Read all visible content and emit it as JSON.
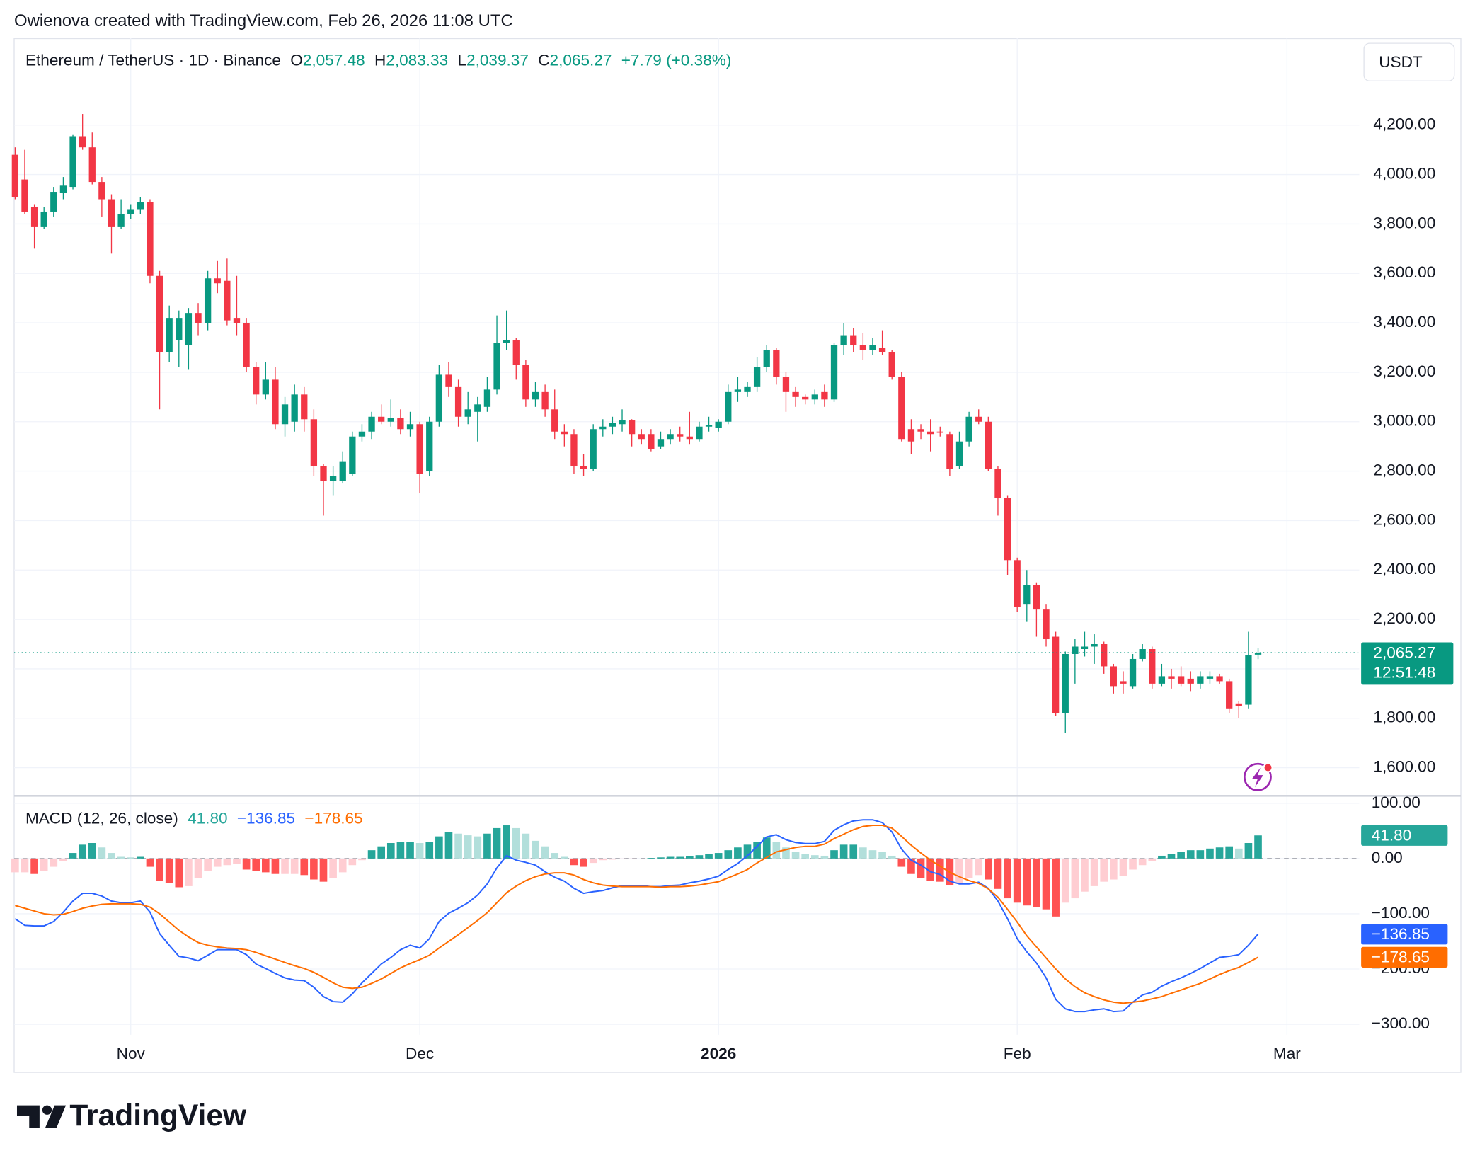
{
  "header": {
    "attribution": "Owienova created with TradingView.com, Feb 26, 2026 11:08 UTC"
  },
  "branding": {
    "logo_text": "TradingView"
  },
  "chart_data": [
    {
      "type": "candlestick",
      "title": "Ethereum / TetherUS · 1D · Binance",
      "legend_items": [
        {
          "key": "O",
          "value": "2,057.48"
        },
        {
          "key": "H",
          "value": "2,083.33"
        },
        {
          "key": "L",
          "value": "2,039.37"
        },
        {
          "key": "C",
          "value": "2,065.27"
        }
      ],
      "change": "+7.79 (+0.38%)",
      "currency": "USDT",
      "price_label": "2,065.27",
      "countdown": "12:51:48",
      "up_color": "#089981",
      "down_color": "#f23645",
      "grid": true,
      "xlim": [
        -0.1,
        139.5
      ],
      "ylim": [
        1490,
        4554
      ],
      "yticks": [
        {
          "value": 1600,
          "label": "1,600.00"
        },
        {
          "value": 1800,
          "label": "1,800.00"
        },
        {
          "value": 2000,
          "label": "2,000.00"
        },
        {
          "value": 2200,
          "label": "2,200.00"
        },
        {
          "value": 2400,
          "label": "2,400.00"
        },
        {
          "value": 2600,
          "label": "2,600.00"
        },
        {
          "value": 2800,
          "label": "2,800.00"
        },
        {
          "value": 3000,
          "label": "3,000.00"
        },
        {
          "value": 3200,
          "label": "3,200.00"
        },
        {
          "value": 3400,
          "label": "3,400.00"
        },
        {
          "value": 3600,
          "label": "3,600.00"
        },
        {
          "value": 3800,
          "label": "3,800.00"
        },
        {
          "value": 4000,
          "label": "4,000.00"
        },
        {
          "value": 4200,
          "label": "4,200.00"
        }
      ],
      "open": [
        4080,
        3980,
        3870,
        3790,
        3850,
        3925,
        3950,
        4155,
        4110,
        3970,
        3900,
        3790,
        3840,
        3860,
        3890,
        3590,
        3280,
        3330,
        3310,
        3440,
        3400,
        3580,
        3570,
        3420,
        3400,
        3220,
        3110,
        3170,
        2990,
        3000,
        3110,
        3010,
        2820,
        2760,
        2760,
        2790,
        2940,
        2960,
        3020,
        3000,
        3015,
        2970,
        2990,
        2800,
        3000,
        3190,
        3140,
        3020,
        3040,
        3060,
        3130,
        3320,
        3330,
        3230,
        3090,
        3120,
        3050,
        2960,
        2950,
        2820,
        2810,
        2970,
        2980,
        2990,
        3005,
        2950,
        2950,
        2900,
        2930,
        2950,
        2940,
        2930,
        2980,
        2975,
        3000,
        3120,
        3120,
        3140,
        3220,
        3290,
        3180,
        3120,
        3100,
        3090,
        3120,
        3090,
        3310,
        3350,
        3310,
        3290,
        3300,
        3280,
        3180,
        2970,
        2970,
        2960,
        2960,
        2950,
        2820,
        2920,
        3020,
        3000,
        2810,
        2690,
        2440,
        2260,
        2340,
        2240,
        2130,
        1820,
        2060,
        2080,
        2090,
        2100,
        2010,
        1950,
        1930,
        2040,
        2080,
        1940,
        1970,
        1970,
        1960,
        1940,
        1960,
        1970,
        1950,
        1860,
        1855,
        2057.48
      ],
      "high": [
        4110,
        4100,
        3880,
        3870,
        3950,
        3990,
        4160,
        4245,
        4170,
        3990,
        3920,
        3900,
        3880,
        3910,
        3900,
        3610,
        3470,
        3450,
        3460,
        3480,
        3610,
        3650,
        3660,
        3590,
        3420,
        3240,
        3240,
        3220,
        3100,
        3150,
        3140,
        3050,
        2830,
        2820,
        2880,
        2960,
        2990,
        3040,
        3070,
        3090,
        3050,
        3040,
        3000,
        3020,
        3230,
        3240,
        3170,
        3120,
        3100,
        3180,
        3430,
        3450,
        3340,
        3250,
        3160,
        3150,
        3130,
        2990,
        2970,
        2870,
        2990,
        3010,
        3020,
        3050,
        3010,
        2970,
        2970,
        2960,
        2970,
        2980,
        3040,
        3000,
        3020,
        3010,
        3150,
        3180,
        3160,
        3260,
        3310,
        3300,
        3200,
        3140,
        3110,
        3130,
        3150,
        3320,
        3400,
        3380,
        3360,
        3340,
        3370,
        3290,
        3200,
        3010,
        2990,
        3010,
        2980,
        2960,
        2960,
        3040,
        3050,
        3020,
        2820,
        2700,
        2450,
        2400,
        2350,
        2260,
        2150,
        2070,
        2120,
        2150,
        2140,
        2110,
        2020,
        1990,
        2060,
        2100,
        2090,
        2020,
        2000,
        2010,
        1990,
        1990,
        1990,
        1980,
        1960,
        1870,
        2150,
        2083.33
      ],
      "low": [
        3900,
        3840,
        3700,
        3780,
        3830,
        3900,
        3940,
        4100,
        3960,
        3830,
        3680,
        3780,
        3820,
        3840,
        3560,
        3050,
        3240,
        3220,
        3210,
        3350,
        3370,
        3520,
        3390,
        3350,
        3200,
        3070,
        3090,
        2970,
        2940,
        2960,
        2960,
        2780,
        2620,
        2700,
        2750,
        2780,
        2920,
        2930,
        2990,
        2980,
        2950,
        2940,
        2710,
        2780,
        2980,
        3100,
        2980,
        2990,
        2920,
        3040,
        3110,
        3290,
        3170,
        3060,
        3060,
        3020,
        2930,
        2900,
        2790,
        2780,
        2800,
        2940,
        2950,
        2960,
        2900,
        2910,
        2880,
        2890,
        2910,
        2920,
        2910,
        2920,
        2960,
        2960,
        2990,
        3080,
        3100,
        3120,
        3200,
        3150,
        3040,
        3060,
        3070,
        3070,
        3060,
        3080,
        3270,
        3280,
        3250,
        3270,
        3270,
        3170,
        2920,
        2870,
        2930,
        2880,
        2940,
        2780,
        2810,
        2900,
        2990,
        2800,
        2620,
        2380,
        2230,
        2190,
        2130,
        2090,
        1810,
        1740,
        1940,
        2050,
        2020,
        1980,
        1900,
        1900,
        1920,
        2030,
        1920,
        1930,
        1920,
        1930,
        1910,
        1920,
        1940,
        1940,
        1820,
        1800,
        1840,
        2039.37
      ],
      "close": [
        3910,
        3850,
        3790,
        3850,
        3930,
        3955,
        4155,
        4110,
        3970,
        3900,
        3790,
        3840,
        3860,
        3890,
        3590,
        3280,
        3420,
        3420,
        3440,
        3400,
        3580,
        3560,
        3410,
        3400,
        3220,
        3110,
        3170,
        2990,
        3070,
        3110,
        3010,
        2820,
        2760,
        2780,
        2840,
        2940,
        2960,
        3020,
        3000,
        3015,
        2970,
        2990,
        2790,
        3000,
        3190,
        3140,
        3020,
        3050,
        3070,
        3130,
        3320,
        3330,
        3230,
        3090,
        3120,
        3050,
        2960,
        2950,
        2820,
        2810,
        2970,
        2980,
        2995,
        3005,
        2950,
        2930,
        2890,
        2930,
        2950,
        2940,
        2930,
        2980,
        2985,
        3000,
        3120,
        3130,
        3140,
        3220,
        3290,
        3180,
        3120,
        3100,
        3090,
        3110,
        3090,
        3310,
        3350,
        3310,
        3290,
        3310,
        3280,
        3180,
        2930,
        2920,
        2960,
        2950,
        2955,
        2810,
        2920,
        3020,
        3000,
        2810,
        2690,
        2440,
        2250,
        2340,
        2240,
        2120,
        1820,
        2060,
        2090,
        2090,
        2100,
        2010,
        1930,
        1940,
        2040,
        2080,
        1940,
        1970,
        1960,
        1940,
        1940,
        1970,
        1970,
        1950,
        1840,
        1850,
        2057,
        2065.27
      ]
    },
    {
      "type": "macd",
      "title": "MACD (12, 26, close)",
      "grid": true,
      "xlim": [
        -0.1,
        139.5
      ],
      "ylim": [
        -319,
        110
      ],
      "xticks": [
        {
          "value": 12,
          "label": "Nov"
        },
        {
          "value": 42,
          "label": "Dec"
        },
        {
          "value": 73,
          "label": "2026",
          "emphasis": true
        },
        {
          "value": 104,
          "label": "Feb"
        },
        {
          "value": 132,
          "label": "Mar"
        }
      ],
      "yticks": [
        {
          "value": -300,
          "label": "−300.00"
        },
        {
          "value": -200,
          "label": "−200.00"
        },
        {
          "value": -100,
          "label": "−100.00"
        },
        {
          "value": 0,
          "label": "0.00"
        },
        {
          "value": 100,
          "label": "100.00"
        }
      ],
      "series": [
        {
          "kind": "histogram",
          "color": "#26a69a",
          "colors": {
            "positive_rising": "#26a69a",
            "positive_falling": "#b2dfdb",
            "negative_falling": "#ff5252",
            "negative_rising": "#ffcdd2"
          },
          "value_label": "41.80",
          "values": [
            -25,
            -25,
            -28,
            -22,
            -15,
            -5,
            10,
            25,
            28,
            20,
            10,
            3,
            2,
            3,
            -15,
            -40,
            -45,
            -52,
            -50,
            -35,
            -22,
            -15,
            -12,
            -10,
            -20,
            -22,
            -25,
            -28,
            -28,
            -28,
            -30,
            -38,
            -42,
            -35,
            -25,
            -12,
            -3,
            15,
            22,
            28,
            30,
            30,
            28,
            30,
            40,
            48,
            45,
            42,
            40,
            45,
            55,
            60,
            55,
            45,
            32,
            22,
            10,
            3,
            -12,
            -15,
            -8,
            -3,
            -2,
            -1,
            -1,
            0,
            1,
            2,
            3,
            3,
            4,
            6,
            8,
            10,
            15,
            20,
            25,
            30,
            38,
            30,
            20,
            12,
            8,
            6,
            5,
            15,
            25,
            25,
            20,
            15,
            12,
            5,
            -15,
            -28,
            -35,
            -40,
            -42,
            -48,
            -45,
            -35,
            -30,
            -38,
            -55,
            -72,
            -80,
            -85,
            -88,
            -92,
            -105,
            -80,
            -72,
            -60,
            -50,
            -42,
            -38,
            -32,
            -20,
            -12,
            -5,
            5,
            8,
            12,
            15,
            15,
            18,
            20,
            22,
            18,
            28,
            41.8
          ]
        },
        {
          "kind": "line",
          "color": "#2962ff",
          "value_label": "−136.85",
          "values": [
            -109,
            -121,
            -122,
            -122,
            -114,
            -97,
            -77,
            -63,
            -63,
            -68,
            -77,
            -80,
            -80,
            -77,
            -97,
            -136,
            -157,
            -177,
            -180,
            -185,
            -175,
            -165,
            -165,
            -165,
            -174,
            -191,
            -199,
            -208,
            -216,
            -220,
            -221,
            -233,
            -250,
            -259,
            -260,
            -245,
            -225,
            -208,
            -191,
            -179,
            -165,
            -157,
            -162,
            -145,
            -114,
            -99,
            -90,
            -80,
            -66,
            -46,
            -17,
            5,
            -3,
            -7,
            -12,
            -24,
            -34,
            -41,
            -54,
            -63,
            -60,
            -58,
            -53,
            -49,
            -49,
            -49,
            -51,
            -51,
            -49,
            -48,
            -44,
            -41,
            -37,
            -32,
            -20,
            -9,
            5,
            22,
            39,
            43,
            34,
            29,
            27,
            27,
            31,
            51,
            61,
            68,
            70,
            70,
            65,
            48,
            17,
            -3,
            -12,
            -24,
            -29,
            -41,
            -46,
            -46,
            -43,
            -54,
            -77,
            -109,
            -145,
            -169,
            -189,
            -216,
            -255,
            -272,
            -277,
            -277,
            -274,
            -272,
            -277,
            -276,
            -260,
            -247,
            -242,
            -231,
            -223,
            -216,
            -208,
            -199,
            -189,
            -179,
            -177,
            -174,
            -157,
            -136.85
          ]
        },
        {
          "kind": "line",
          "color": "#ff6d00",
          "value_label": "−178.65",
          "values": [
            -85,
            -90,
            -95,
            -100,
            -102,
            -101,
            -96,
            -90,
            -86,
            -83,
            -82,
            -82,
            -82,
            -83,
            -88,
            -100,
            -115,
            -130,
            -142,
            -152,
            -157,
            -160,
            -162,
            -163,
            -165,
            -170,
            -176,
            -182,
            -188,
            -194,
            -199,
            -206,
            -215,
            -225,
            -233,
            -235,
            -233,
            -226,
            -218,
            -208,
            -198,
            -190,
            -183,
            -175,
            -162,
            -150,
            -138,
            -125,
            -112,
            -98,
            -80,
            -62,
            -50,
            -40,
            -33,
            -28,
            -26,
            -26,
            -30,
            -38,
            -44,
            -48,
            -50,
            -51,
            -51,
            -51,
            -51,
            -52,
            -51,
            -51,
            -50,
            -48,
            -45,
            -42,
            -35,
            -28,
            -20,
            -8,
            2,
            12,
            16,
            20,
            22,
            22,
            26,
            36,
            44,
            52,
            58,
            60,
            60,
            55,
            40,
            24,
            10,
            -3,
            -14,
            -25,
            -33,
            -40,
            -45,
            -55,
            -70,
            -92,
            -115,
            -140,
            -160,
            -180,
            -200,
            -218,
            -232,
            -243,
            -250,
            -256,
            -260,
            -262,
            -260,
            -258,
            -254,
            -250,
            -244,
            -238,
            -232,
            -226,
            -218,
            -210,
            -203,
            -197,
            -188,
            -178.65
          ]
        }
      ]
    }
  ]
}
